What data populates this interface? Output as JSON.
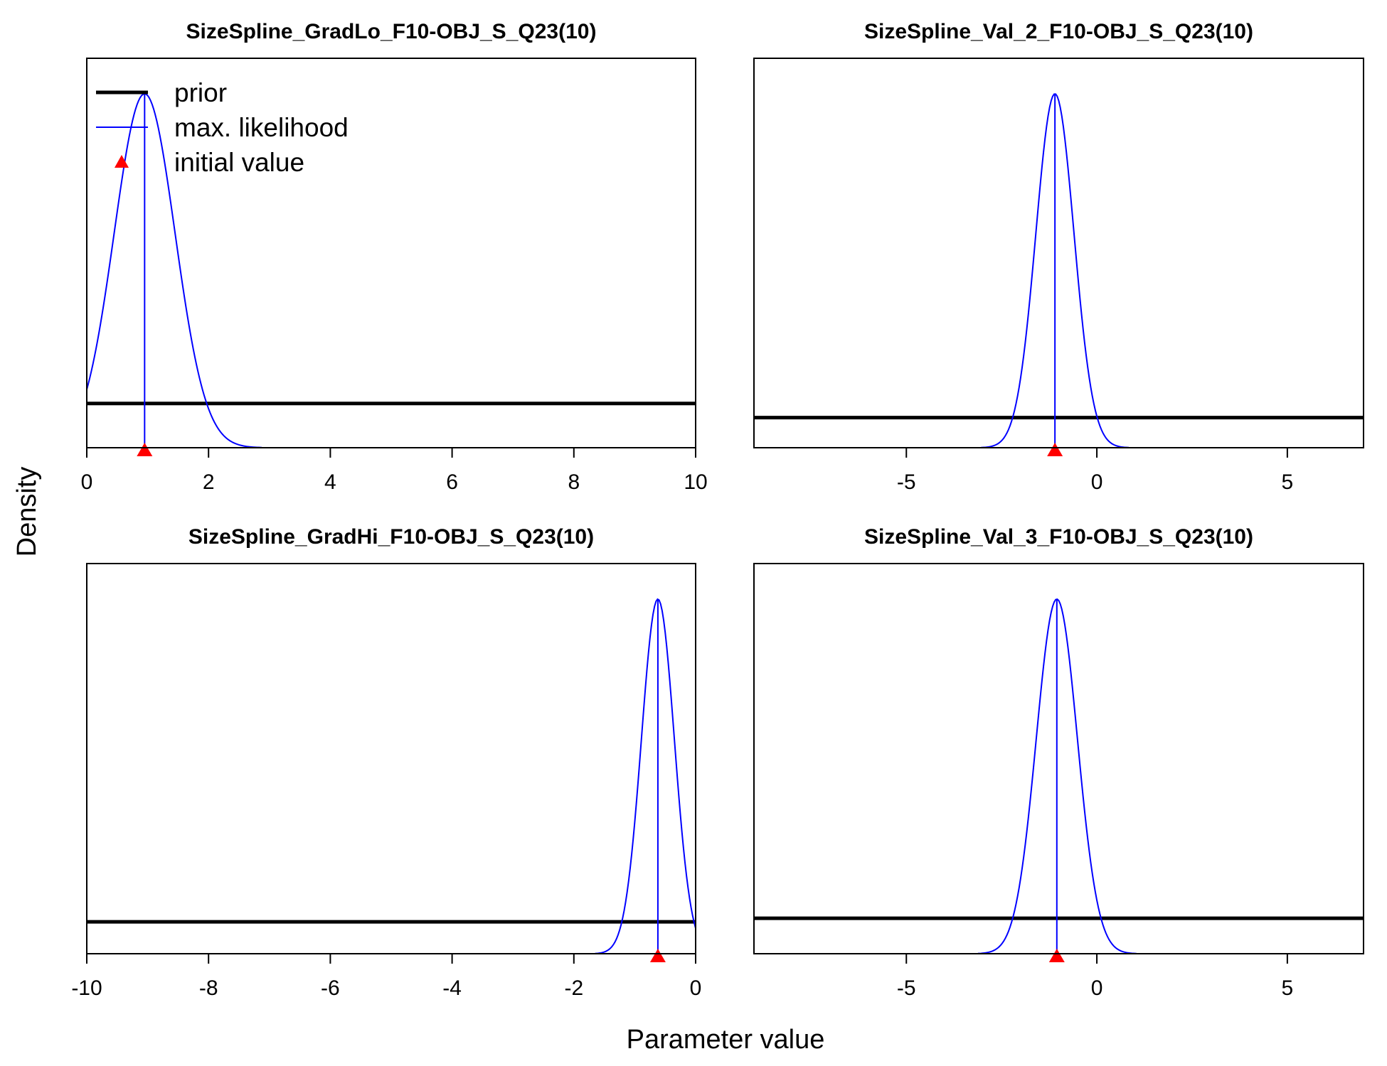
{
  "figure": {
    "ylabel": "Density",
    "xlabel": "Parameter value",
    "legend": {
      "placement": "top-left of first panel",
      "items": [
        {
          "label": "prior",
          "color": "#000000",
          "kind": "thick-line"
        },
        {
          "label": "max. likelihood",
          "color": "#0000ff",
          "kind": "thin-line"
        },
        {
          "label": "initial value",
          "color": "#ff0000",
          "kind": "triangle"
        }
      ]
    }
  },
  "colors": {
    "prior": "#000000",
    "mle": "#0000ff",
    "initial": "#ff0000"
  },
  "chart_data": [
    {
      "type": "line",
      "title": "SizeSpline_GradLo_F10-OBJ_S_Q23(10)",
      "xlim": [
        0,
        10
      ],
      "xticks": [
        0,
        2,
        4,
        6,
        8,
        10
      ],
      "tick_labels": [
        "0",
        "2",
        "4",
        "6",
        "8",
        "10"
      ],
      "ylim": [
        0,
        1
      ],
      "prior_level": 0.125,
      "mle_mean": 0.95,
      "mle_sd": 0.5,
      "mle_value": 0.95,
      "initial_value": 0.95,
      "has_legend": true
    },
    {
      "type": "line",
      "title": "SizeSpline_Val_2_F10-OBJ_S_Q23(10)",
      "xlim": [
        -9,
        7
      ],
      "xticks": [
        -5,
        0,
        5
      ],
      "tick_labels": [
        "-5",
        "0",
        "5"
      ],
      "ylim": [
        0,
        1
      ],
      "prior_level": 0.085,
      "mle_mean": -1.1,
      "mle_sd": 0.5,
      "mle_value": -1.1,
      "initial_value": -1.1,
      "has_legend": false
    },
    {
      "type": "line",
      "title": "SizeSpline_GradHi_F10-OBJ_S_Q23(10)",
      "xlim": [
        -10,
        0
      ],
      "xticks": [
        -10,
        -8,
        -6,
        -4,
        -2,
        0
      ],
      "tick_labels": [
        "-10",
        "-8",
        "-6",
        "-4",
        "-2",
        "0"
      ],
      "ylim": [
        0,
        1
      ],
      "prior_level": 0.09,
      "mle_mean": -0.62,
      "mle_sd": 0.27,
      "mle_value": -0.62,
      "initial_value": -0.62,
      "has_legend": false
    },
    {
      "type": "line",
      "title": "SizeSpline_Val_3_F10-OBJ_S_Q23(10)",
      "xlim": [
        -9,
        7
      ],
      "xticks": [
        -5,
        0,
        5
      ],
      "tick_labels": [
        "-5",
        "0",
        "5"
      ],
      "ylim": [
        0,
        1
      ],
      "prior_level": 0.1,
      "mle_mean": -1.05,
      "mle_sd": 0.54,
      "mle_value": -1.05,
      "initial_value": -1.05,
      "has_legend": false
    }
  ]
}
